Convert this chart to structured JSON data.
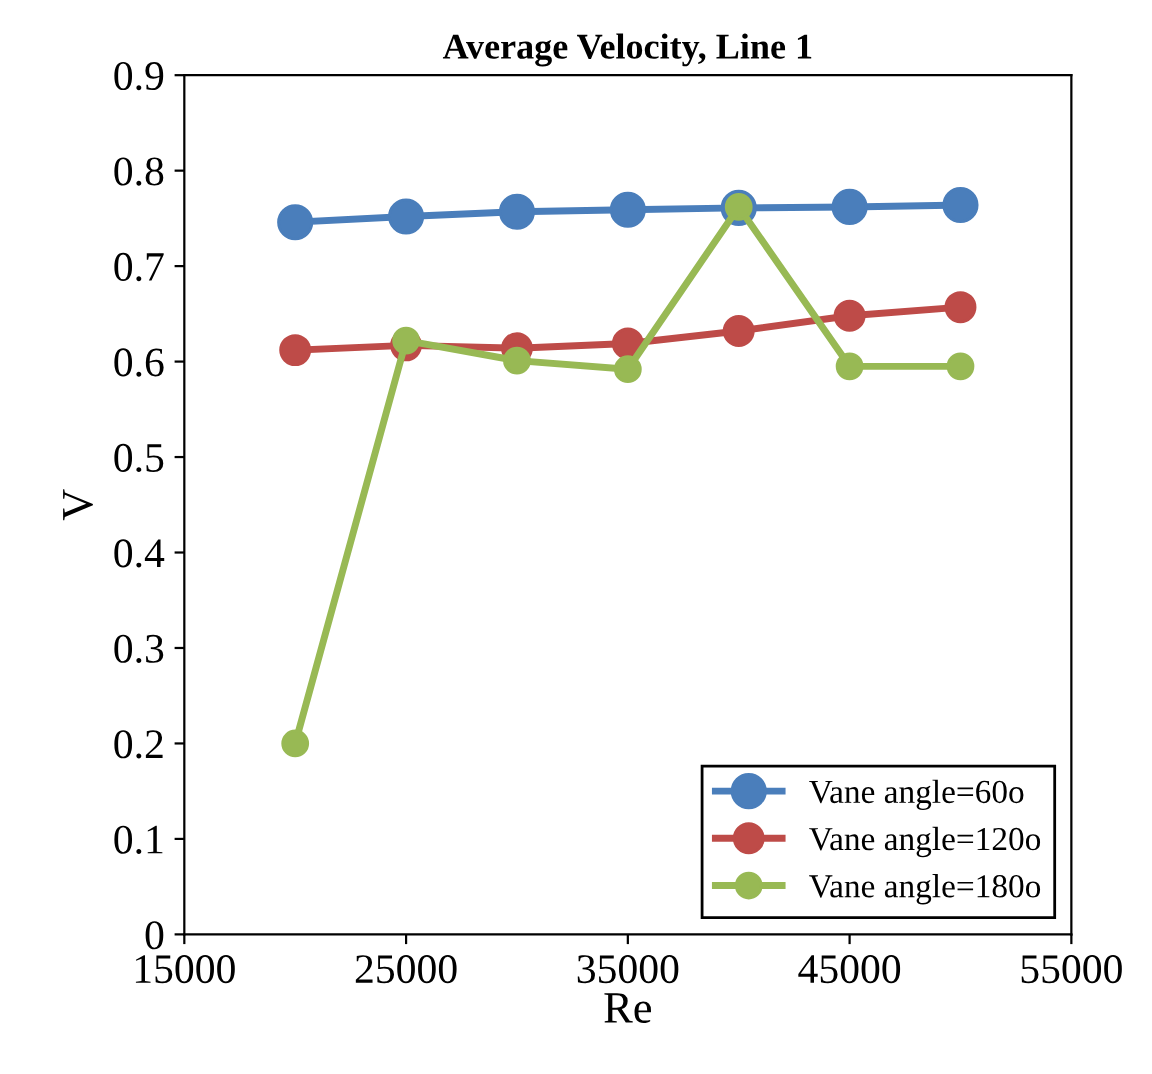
{
  "chart_data": {
    "type": "line",
    "title": "Average Velocity, Line 1",
    "xlabel": "Re",
    "ylabel": "V",
    "x": [
      20000,
      25000,
      30000,
      35000,
      40000,
      45000,
      50000
    ],
    "series": [
      {
        "name": "Vane angle=60o",
        "color": "#4a7ebb",
        "values": [
          0.746,
          0.752,
          0.757,
          0.759,
          0.761,
          0.762,
          0.764
        ]
      },
      {
        "name": "Vane angle=120o",
        "color": "#be4b48",
        "values": [
          0.612,
          0.617,
          0.614,
          0.619,
          0.632,
          0.648,
          0.657
        ]
      },
      {
        "name": "Vane angle=180o",
        "color": "#98b954",
        "values": [
          0.2,
          0.622,
          0.601,
          0.592,
          0.762,
          0.595,
          0.595
        ]
      }
    ],
    "xlim": [
      15000,
      55000
    ],
    "xticks": [
      15000,
      25000,
      35000,
      45000,
      55000
    ],
    "ylim": [
      0,
      0.9
    ],
    "yticks": [
      0,
      0.1,
      0.2,
      0.3,
      0.4,
      0.5,
      0.6,
      0.7,
      0.8,
      0.9
    ],
    "grid": false,
    "legend": "bottom right",
    "marker": "circle",
    "line_style": "solid"
  }
}
